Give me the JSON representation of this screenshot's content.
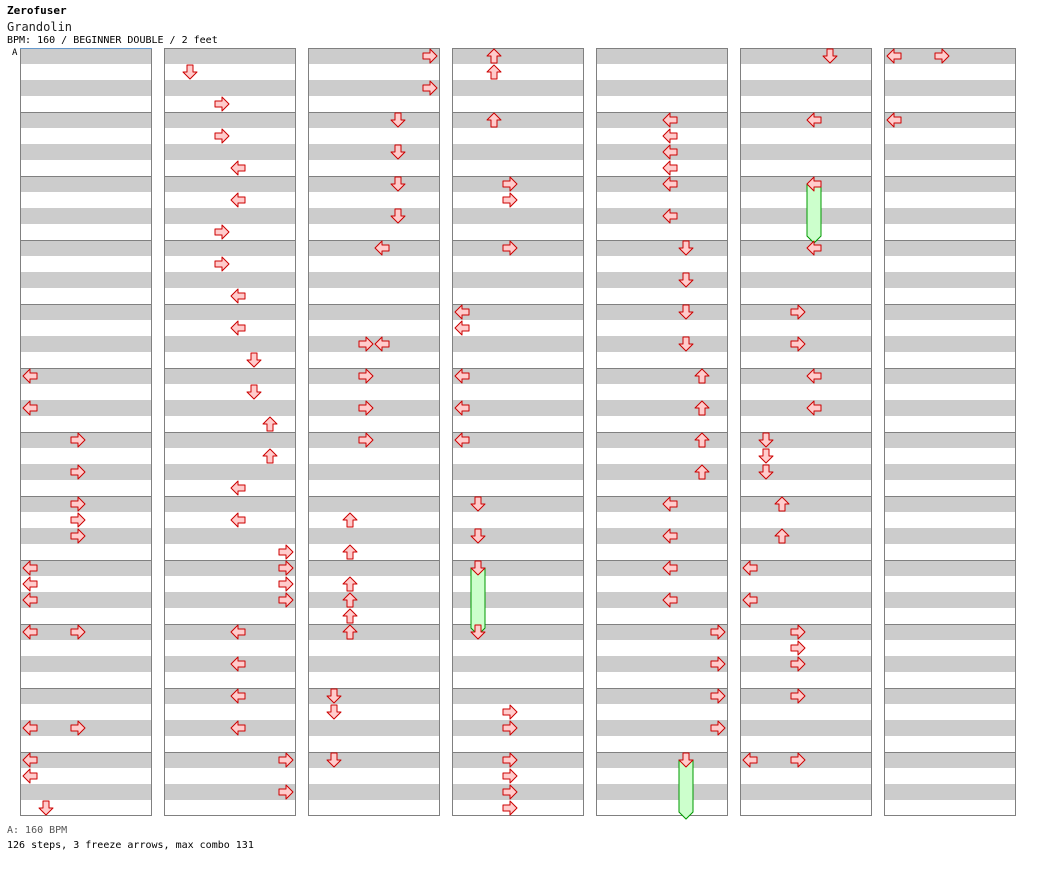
{
  "title": "Zerofuser",
  "subtitle": "Grandolin",
  "info": "BPM: 160 / BEGINNER DOUBLE / 2 feet",
  "bpm_marker": "A",
  "footer_bpm": "A: 160 BPM",
  "footer_stats": "126 steps, 3 freeze arrows, max combo 131",
  "colors": {
    "arrow_fill": "#ffcccc",
    "arrow_stroke": "#cc0000",
    "freeze_fill": "#ccffcc",
    "freeze_stroke": "#009900",
    "stripe": "#cccccc",
    "border": "#808080"
  },
  "chart_data": {
    "type": "step-chart",
    "columns": 7,
    "measures_per_column": 12,
    "rows_per_measure": 8,
    "lanes": [
      "p1-left",
      "p1-down",
      "p1-up",
      "p1-right",
      "p2-left",
      "p2-down",
      "p2-up",
      "p2-right"
    ],
    "notes": [
      [
        "0",
        "1",
        "0",
        "0",
        "0",
        "0",
        "0",
        "0",
        "0"
      ],
      [
        "0",
        "1",
        "0",
        "0",
        "0",
        "0",
        "1",
        "0",
        "0"
      ],
      [
        "0",
        "1",
        "0",
        "0",
        "0",
        "0",
        "1",
        "0",
        "0"
      ],
      [
        "0",
        "1",
        "0",
        "0",
        "0",
        "0",
        "1",
        "0",
        "0"
      ],
      [
        "0",
        "1",
        "0",
        "0",
        "0",
        "0",
        "1",
        "0",
        "0"
      ],
      [
        "0",
        "1",
        "0",
        "0",
        "0",
        "0",
        "1",
        "0",
        "0"
      ],
      [
        "0",
        "1",
        "0",
        "0",
        "0",
        "0",
        "1",
        "0",
        "0"
      ]
    ],
    "arrows": [
      {
        "c": 0,
        "r": 40,
        "l": 0
      },
      {
        "c": 0,
        "r": 44,
        "l": 0
      },
      {
        "c": 0,
        "r": 48,
        "l": 3
      },
      {
        "c": 0,
        "r": 52,
        "l": 3
      },
      {
        "c": 0,
        "r": 56,
        "l": 3
      },
      {
        "c": 0,
        "r": 58,
        "l": 3
      },
      {
        "c": 0,
        "r": 60,
        "l": 3
      },
      {
        "c": 0,
        "r": 64,
        "l": 0
      },
      {
        "c": 0,
        "r": 66,
        "l": 0
      },
      {
        "c": 0,
        "r": 68,
        "l": 0
      },
      {
        "c": 0,
        "r": 72,
        "l": 0
      },
      {
        "c": 0,
        "r": 72,
        "l": 3
      },
      {
        "c": 0,
        "r": 84,
        "l": 0
      },
      {
        "c": 0,
        "r": 84,
        "l": 3
      },
      {
        "c": 0,
        "r": 88,
        "l": 0
      },
      {
        "c": 0,
        "r": 90,
        "l": 0
      },
      {
        "c": 0,
        "r": 94,
        "l": 1
      },
      {
        "c": 1,
        "r": 2,
        "l": 1
      },
      {
        "c": 1,
        "r": 6,
        "l": 3
      },
      {
        "c": 1,
        "r": 10,
        "l": 3
      },
      {
        "c": 1,
        "r": 14,
        "l": 4
      },
      {
        "c": 1,
        "r": 18,
        "l": 4
      },
      {
        "c": 1,
        "r": 22,
        "l": 3
      },
      {
        "c": 1,
        "r": 26,
        "l": 3
      },
      {
        "c": 1,
        "r": 30,
        "l": 4
      },
      {
        "c": 1,
        "r": 34,
        "l": 4
      },
      {
        "c": 1,
        "r": 38,
        "l": 5
      },
      {
        "c": 1,
        "r": 42,
        "l": 5
      },
      {
        "c": 1,
        "r": 46,
        "l": 6
      },
      {
        "c": 1,
        "r": 50,
        "l": 6
      },
      {
        "c": 1,
        "r": 54,
        "l": 4
      },
      {
        "c": 1,
        "r": 58,
        "l": 4
      },
      {
        "c": 1,
        "r": 62,
        "l": 7
      },
      {
        "c": 1,
        "r": 64,
        "l": 7
      },
      {
        "c": 1,
        "r": 66,
        "l": 7
      },
      {
        "c": 1,
        "r": 68,
        "l": 7
      },
      {
        "c": 1,
        "r": 72,
        "l": 4
      },
      {
        "c": 1,
        "r": 76,
        "l": 4
      },
      {
        "c": 1,
        "r": 80,
        "l": 4
      },
      {
        "c": 1,
        "r": 84,
        "l": 4
      },
      {
        "c": 1,
        "r": 88,
        "l": 7
      },
      {
        "c": 1,
        "r": 92,
        "l": 7
      },
      {
        "c": 2,
        "r": 0,
        "l": 7
      },
      {
        "c": 2,
        "r": 4,
        "l": 7
      },
      {
        "c": 2,
        "r": 8,
        "l": 5
      },
      {
        "c": 2,
        "r": 12,
        "l": 5
      },
      {
        "c": 2,
        "r": 16,
        "l": 5
      },
      {
        "c": 2,
        "r": 20,
        "l": 5
      },
      {
        "c": 2,
        "r": 24,
        "l": 4
      },
      {
        "c": 2,
        "r": 36,
        "l": 3
      },
      {
        "c": 2,
        "r": 36,
        "l": 4
      },
      {
        "c": 2,
        "r": 40,
        "l": 3
      },
      {
        "c": 2,
        "r": 44,
        "l": 3
      },
      {
        "c": 2,
        "r": 48,
        "l": 3
      },
      {
        "c": 2,
        "r": 58,
        "l": 2
      },
      {
        "c": 2,
        "r": 62,
        "l": 2
      },
      {
        "c": 2,
        "r": 66,
        "l": 2
      },
      {
        "c": 2,
        "r": 68,
        "l": 2
      },
      {
        "c": 2,
        "r": 70,
        "l": 2
      },
      {
        "c": 2,
        "r": 72,
        "l": 2
      },
      {
        "c": 2,
        "r": 80,
        "l": 1
      },
      {
        "c": 2,
        "r": 82,
        "l": 1
      },
      {
        "c": 2,
        "r": 88,
        "l": 1
      },
      {
        "c": 3,
        "r": 0,
        "l": 2
      },
      {
        "c": 3,
        "r": 2,
        "l": 2
      },
      {
        "c": 3,
        "r": 8,
        "l": 2
      },
      {
        "c": 3,
        "r": 16,
        "l": 3
      },
      {
        "c": 3,
        "r": 18,
        "l": 3
      },
      {
        "c": 3,
        "r": 24,
        "l": 3
      },
      {
        "c": 3,
        "r": 32,
        "l": 0
      },
      {
        "c": 3,
        "r": 34,
        "l": 0
      },
      {
        "c": 3,
        "r": 40,
        "l": 0
      },
      {
        "c": 3,
        "r": 44,
        "l": 0
      },
      {
        "c": 3,
        "r": 48,
        "l": 0
      },
      {
        "c": 3,
        "r": 56,
        "l": 1
      },
      {
        "c": 3,
        "r": 60,
        "l": 1
      },
      {
        "c": 3,
        "r": 64,
        "l": 1,
        "freeze": 8
      },
      {
        "c": 3,
        "r": 72,
        "l": 1
      },
      {
        "c": 3,
        "r": 82,
        "l": 3
      },
      {
        "c": 3,
        "r": 84,
        "l": 3
      },
      {
        "c": 3,
        "r": 88,
        "l": 3
      },
      {
        "c": 3,
        "r": 90,
        "l": 3
      },
      {
        "c": 3,
        "r": 92,
        "l": 3
      },
      {
        "c": 3,
        "r": 94,
        "l": 3
      },
      {
        "c": 4,
        "r": 8,
        "l": 4
      },
      {
        "c": 4,
        "r": 10,
        "l": 4
      },
      {
        "c": 4,
        "r": 12,
        "l": 4
      },
      {
        "c": 4,
        "r": 14,
        "l": 4
      },
      {
        "c": 4,
        "r": 16,
        "l": 4
      },
      {
        "c": 4,
        "r": 20,
        "l": 4
      },
      {
        "c": 4,
        "r": 24,
        "l": 5
      },
      {
        "c": 4,
        "r": 28,
        "l": 5
      },
      {
        "c": 4,
        "r": 32,
        "l": 5
      },
      {
        "c": 4,
        "r": 36,
        "l": 5
      },
      {
        "c": 4,
        "r": 40,
        "l": 6
      },
      {
        "c": 4,
        "r": 44,
        "l": 6
      },
      {
        "c": 4,
        "r": 48,
        "l": 6
      },
      {
        "c": 4,
        "r": 52,
        "l": 6
      },
      {
        "c": 4,
        "r": 56,
        "l": 4
      },
      {
        "c": 4,
        "r": 60,
        "l": 4
      },
      {
        "c": 4,
        "r": 64,
        "l": 4
      },
      {
        "c": 4,
        "r": 68,
        "l": 4
      },
      {
        "c": 4,
        "r": 72,
        "l": 7
      },
      {
        "c": 4,
        "r": 76,
        "l": 7
      },
      {
        "c": 4,
        "r": 80,
        "l": 7
      },
      {
        "c": 4,
        "r": 84,
        "l": 7
      },
      {
        "c": 4,
        "r": 88,
        "l": 5,
        "freeze": 7
      },
      {
        "c": 5,
        "r": 0,
        "l": 5
      },
      {
        "c": 5,
        "r": 8,
        "l": 4
      },
      {
        "c": 5,
        "r": 16,
        "l": 4,
        "freeze": 7
      },
      {
        "c": 5,
        "r": 24,
        "l": 4
      },
      {
        "c": 5,
        "r": 32,
        "l": 3
      },
      {
        "c": 5,
        "r": 36,
        "l": 3
      },
      {
        "c": 5,
        "r": 40,
        "l": 4
      },
      {
        "c": 5,
        "r": 44,
        "l": 4
      },
      {
        "c": 5,
        "r": 48,
        "l": 1
      },
      {
        "c": 5,
        "r": 50,
        "l": 1
      },
      {
        "c": 5,
        "r": 52,
        "l": 1
      },
      {
        "c": 5,
        "r": 56,
        "l": 2
      },
      {
        "c": 5,
        "r": 60,
        "l": 2
      },
      {
        "c": 5,
        "r": 64,
        "l": 0
      },
      {
        "c": 5,
        "r": 68,
        "l": 0
      },
      {
        "c": 5,
        "r": 72,
        "l": 3
      },
      {
        "c": 5,
        "r": 74,
        "l": 3
      },
      {
        "c": 5,
        "r": 76,
        "l": 3
      },
      {
        "c": 5,
        "r": 80,
        "l": 3
      },
      {
        "c": 5,
        "r": 88,
        "l": 0
      },
      {
        "c": 5,
        "r": 88,
        "l": 3
      },
      {
        "c": 6,
        "r": 0,
        "l": 0
      },
      {
        "c": 6,
        "r": 0,
        "l": 3
      },
      {
        "c": 6,
        "r": 8,
        "l": 0
      }
    ]
  }
}
